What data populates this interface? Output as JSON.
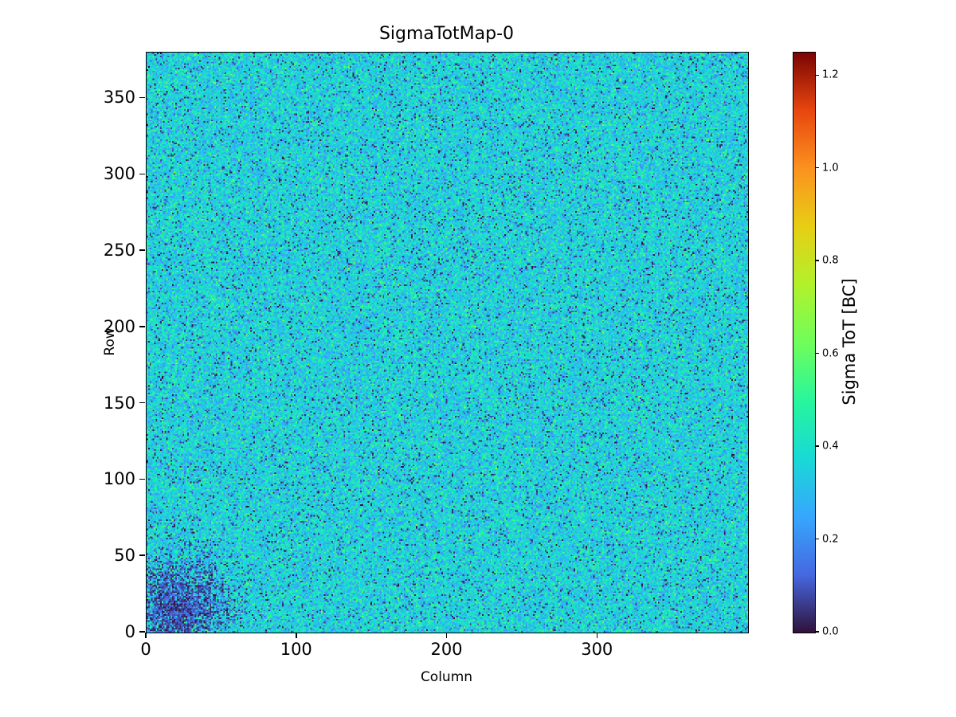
{
  "chart_data": {
    "type": "heatmap",
    "title": "SigmaTotMap-0",
    "xlabel": "Column",
    "ylabel": "Row",
    "xlim": [
      0,
      400
    ],
    "ylim": [
      0,
      380
    ],
    "grid": false,
    "x_ticks": {
      "values": [
        0,
        100,
        200,
        300
      ],
      "labels": [
        "0",
        "100",
        "200",
        "300"
      ]
    },
    "y_ticks": {
      "values": [
        0,
        50,
        100,
        150,
        200,
        250,
        300,
        350
      ],
      "labels": [
        "0",
        "50",
        "100",
        "150",
        "200",
        "250",
        "300",
        "350"
      ]
    },
    "colorbar": {
      "label": "Sigma ToT [BC]",
      "range": [
        0,
        1.25
      ],
      "tick_values": [
        0.0,
        0.2,
        0.4,
        0.6,
        0.8,
        1.0,
        1.2
      ],
      "tick_labels": [
        "0.0",
        "0.2",
        "0.4",
        "0.6",
        "0.8",
        "1.0",
        "1.2"
      ],
      "position": "right"
    },
    "colormap": {
      "name": "turbo",
      "stops": [
        {
          "t": 0.0,
          "color": "#30123b"
        },
        {
          "t": 0.1,
          "color": "#4668e1"
        },
        {
          "t": 0.2,
          "color": "#36a7fd"
        },
        {
          "t": 0.3,
          "color": "#19d9d6"
        },
        {
          "t": 0.4,
          "color": "#28f69c"
        },
        {
          "t": 0.5,
          "color": "#6ffe5a"
        },
        {
          "t": 0.6,
          "color": "#b1f12b"
        },
        {
          "t": 0.7,
          "color": "#e7ce14"
        },
        {
          "t": 0.8,
          "color": "#fc921f"
        },
        {
          "t": 0.9,
          "color": "#e8460e"
        },
        {
          "t": 1.0,
          "color": "#7a0403"
        }
      ]
    },
    "heatmap": {
      "columns": 400,
      "rows": 380,
      "base_mean": 0.36,
      "base_sigma": 0.09,
      "value_min": 0.02,
      "value_max": 1.2,
      "dropout_fraction": 0.05,
      "dropout_max": 0.1,
      "low_blob": {
        "col": 20,
        "row": 15,
        "radius": 42,
        "strength": 0.95
      },
      "seed": 42,
      "data_description": "Per-pixel Sigma ToT noise map: mostly uniform speckle near 0.3-0.5 BC (cyan/green) with scattered near-zero dark pixels and a dense low-value cluster in the bottom-left corner around column 20, row 15."
    }
  }
}
